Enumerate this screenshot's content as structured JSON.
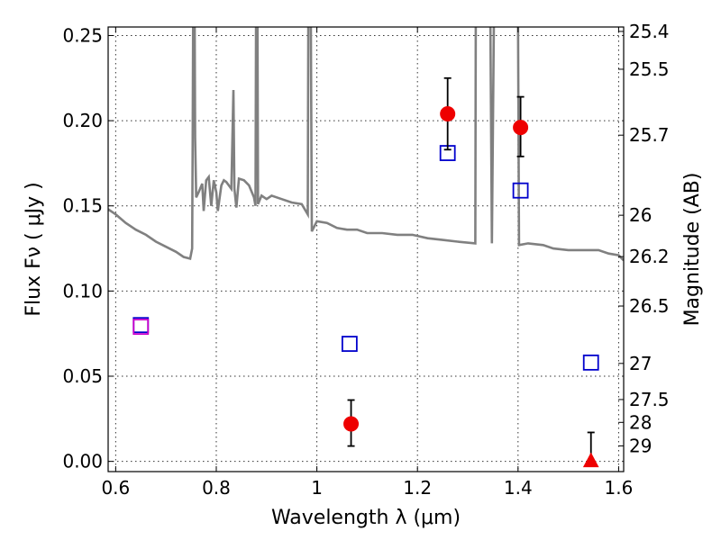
{
  "chart_data": {
    "type": "scatter",
    "title": "",
    "xlabel": "Wavelength  λ (μm)",
    "ylabel": "Flux  Fν  ( μJy )",
    "y2label": "Magnitude (AB)",
    "xlim": [
      0.585,
      1.61
    ],
    "ylim": [
      -0.006,
      0.255
    ],
    "grid": true,
    "x_ticks": [
      {
        "value": 0.6,
        "label": "0.6"
      },
      {
        "value": 0.8,
        "label": "0.8"
      },
      {
        "value": 1.0,
        "label": "1"
      },
      {
        "value": 1.2,
        "label": "1.2"
      },
      {
        "value": 1.4,
        "label": "1.4"
      },
      {
        "value": 1.6,
        "label": "1.6"
      }
    ],
    "y_ticks": [
      {
        "value": 0.0,
        "label": "0.00"
      },
      {
        "value": 0.05,
        "label": "0.05"
      },
      {
        "value": 0.1,
        "label": "0.10"
      },
      {
        "value": 0.15,
        "label": "0.15"
      },
      {
        "value": 0.2,
        "label": "0.20"
      },
      {
        "value": 0.25,
        "label": "0.25"
      }
    ],
    "y2_ticks": [
      {
        "flux": 0.2524,
        "label": "25.4"
      },
      {
        "flux": 0.2302,
        "label": "25.5"
      },
      {
        "flux": 0.1915,
        "label": "25.7"
      },
      {
        "flux": 0.1445,
        "label": "26"
      },
      {
        "flux": 0.1202,
        "label": "26.2"
      },
      {
        "flux": 0.0912,
        "label": "26.5"
      },
      {
        "flux": 0.0575,
        "label": "27"
      },
      {
        "flux": 0.0363,
        "label": "27.5"
      },
      {
        "flux": 0.0229,
        "label": "28"
      },
      {
        "flux": 0.0091,
        "label": "29"
      }
    ],
    "series": [
      {
        "kind": "model-sed",
        "color": "#808080",
        "points": [
          [
            0.585,
            0.148
          ],
          [
            0.6,
            0.145
          ],
          [
            0.62,
            0.14
          ],
          [
            0.64,
            0.136
          ],
          [
            0.66,
            0.133
          ],
          [
            0.68,
            0.129
          ],
          [
            0.7,
            0.126
          ],
          [
            0.72,
            0.123
          ],
          [
            0.735,
            0.12
          ],
          [
            0.748,
            0.119
          ],
          [
            0.752,
            0.125
          ],
          [
            0.753,
            0.19
          ],
          [
            0.754,
            0.258
          ],
          [
            0.757,
            0.258
          ],
          [
            0.758,
            0.19
          ],
          [
            0.76,
            0.155
          ],
          [
            0.765,
            0.158
          ],
          [
            0.772,
            0.163
          ],
          [
            0.775,
            0.147
          ],
          [
            0.78,
            0.165
          ],
          [
            0.785,
            0.167
          ],
          [
            0.79,
            0.15
          ],
          [
            0.795,
            0.165
          ],
          [
            0.8,
            0.158
          ],
          [
            0.803,
            0.147
          ],
          [
            0.81,
            0.162
          ],
          [
            0.815,
            0.165
          ],
          [
            0.82,
            0.164
          ],
          [
            0.83,
            0.16
          ],
          [
            0.834,
            0.218
          ],
          [
            0.836,
            0.16
          ],
          [
            0.84,
            0.149
          ],
          [
            0.845,
            0.166
          ],
          [
            0.855,
            0.165
          ],
          [
            0.865,
            0.162
          ],
          [
            0.875,
            0.155
          ],
          [
            0.878,
            0.15
          ],
          [
            0.879,
            0.258
          ],
          [
            0.882,
            0.258
          ],
          [
            0.883,
            0.151
          ],
          [
            0.89,
            0.156
          ],
          [
            0.9,
            0.154
          ],
          [
            0.91,
            0.156
          ],
          [
            0.93,
            0.154
          ],
          [
            0.95,
            0.152
          ],
          [
            0.97,
            0.151
          ],
          [
            0.982,
            0.145
          ],
          [
            0.983,
            0.258
          ],
          [
            0.988,
            0.258
          ],
          [
            0.99,
            0.135
          ],
          [
            1.0,
            0.141
          ],
          [
            1.02,
            0.14
          ],
          [
            1.04,
            0.137
          ],
          [
            1.06,
            0.136
          ],
          [
            1.08,
            0.136
          ],
          [
            1.1,
            0.134
          ],
          [
            1.13,
            0.134
          ],
          [
            1.16,
            0.133
          ],
          [
            1.19,
            0.133
          ],
          [
            1.22,
            0.131
          ],
          [
            1.25,
            0.13
          ],
          [
            1.28,
            0.129
          ],
          [
            1.315,
            0.128
          ],
          [
            1.316,
            0.258
          ],
          [
            1.345,
            0.258
          ],
          [
            1.348,
            0.128
          ],
          [
            1.352,
            0.258
          ],
          [
            1.4,
            0.258
          ],
          [
            1.402,
            0.127
          ],
          [
            1.42,
            0.128
          ],
          [
            1.45,
            0.127
          ],
          [
            1.47,
            0.125
          ],
          [
            1.5,
            0.124
          ],
          [
            1.53,
            0.124
          ],
          [
            1.56,
            0.124
          ],
          [
            1.58,
            0.122
          ],
          [
            1.6,
            0.121
          ],
          [
            1.61,
            0.118
          ]
        ]
      },
      {
        "kind": "model-photometry",
        "marker": "open-square",
        "color": "#0000cc",
        "points": [
          {
            "x": 0.65,
            "y": 0.08
          },
          {
            "x": 1.065,
            "y": 0.069
          },
          {
            "x": 1.26,
            "y": 0.181
          },
          {
            "x": 1.405,
            "y": 0.159
          },
          {
            "x": 1.545,
            "y": 0.058
          }
        ]
      },
      {
        "kind": "photometry",
        "marker": "open-square",
        "color": "#cc00cc",
        "points": [
          {
            "x": 0.65,
            "y": 0.079
          }
        ]
      },
      {
        "kind": "observed",
        "marker": "filled-circle",
        "color": "#ee0000",
        "points": [
          {
            "x": 1.068,
            "y": 0.022,
            "yerr_low": 0.013,
            "yerr_high": 0.014
          },
          {
            "x": 1.26,
            "y": 0.204,
            "yerr_low": 0.021,
            "yerr_high": 0.021
          },
          {
            "x": 1.405,
            "y": 0.196,
            "yerr_low": 0.017,
            "yerr_high": 0.018
          }
        ]
      },
      {
        "kind": "upper-limit",
        "marker": "filled-triangle",
        "color": "#ee0000",
        "points": [
          {
            "x": 1.545,
            "y": 0.0,
            "yerr_high": 0.017
          }
        ]
      }
    ]
  }
}
